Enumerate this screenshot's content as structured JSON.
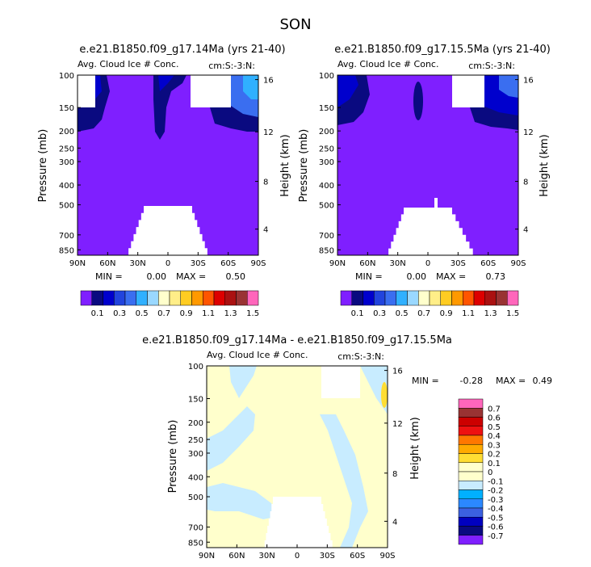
{
  "figure": {
    "title": "SON"
  },
  "chart_data": [
    {
      "type": "heatmap",
      "title": "e.e21.B1850.f09_g17.14Ma (yrs 21-40)",
      "subtitle_left": "Avg. Cloud Ice # Conc.",
      "subtitle_right": "cm:S:-3:N:",
      "ylabel": "Pressure (mb)",
      "ylabel_right": "Height (km)",
      "x_ticks": [
        "90N",
        "60N",
        "30N",
        "0",
        "30S",
        "60S",
        "90S"
      ],
      "y_ticks": [
        "100",
        "150",
        "200",
        "250",
        "300",
        "400",
        "500",
        "700",
        "850"
      ],
      "y_ticks_right": [
        "16",
        "12",
        "8",
        "4"
      ],
      "stats": {
        "min_label": "MIN =",
        "min": "0.00",
        "max_label": "MAX =",
        "max": "0.50"
      },
      "colorbar": {
        "orientation": "horizontal",
        "labels": [
          "0.1",
          "0.3",
          "0.5",
          "0.7",
          "0.9",
          "1.1",
          "1.3",
          "1.5"
        ],
        "colors": [
          "#7f1fff",
          "#0a0a80",
          "#0000cd",
          "#2244dd",
          "#3a6ef0",
          "#30b0ff",
          "#9ad8ff",
          "#ffffcc",
          "#ffee88",
          "#ffcc22",
          "#ff9900",
          "#ff5500",
          "#dd0000",
          "#aa1111",
          "#993333",
          "#ff66bb"
        ]
      }
    },
    {
      "type": "heatmap",
      "title": "e.e21.B1850.f09_g17.15.5Ma (yrs 21-40)",
      "subtitle_left": "Avg. Cloud Ice # Conc.",
      "subtitle_right": "cm:S:-3:N:",
      "ylabel": "Pressure (mb)",
      "ylabel_right": "Height (km)",
      "x_ticks": [
        "90N",
        "60N",
        "30N",
        "0",
        "30S",
        "60S",
        "90S"
      ],
      "y_ticks": [
        "100",
        "150",
        "200",
        "250",
        "300",
        "400",
        "500",
        "700",
        "850"
      ],
      "y_ticks_right": [
        "16",
        "12",
        "8",
        "4"
      ],
      "stats": {
        "min_label": "MIN =",
        "min": "0.00",
        "max_label": "MAX =",
        "max": "0.73"
      },
      "colorbar": {
        "orientation": "horizontal",
        "labels": [
          "0.1",
          "0.3",
          "0.5",
          "0.7",
          "0.9",
          "1.1",
          "1.3",
          "1.5"
        ],
        "colors": [
          "#7f1fff",
          "#0a0a80",
          "#0000cd",
          "#2244dd",
          "#3a6ef0",
          "#30b0ff",
          "#9ad8ff",
          "#ffffcc",
          "#ffee88",
          "#ffcc22",
          "#ff9900",
          "#ff5500",
          "#dd0000",
          "#aa1111",
          "#993333",
          "#ff66bb"
        ]
      }
    },
    {
      "type": "heatmap",
      "title": "e.e21.B1850.f09_g17.14Ma - e.e21.B1850.f09_g17.15.5Ma",
      "subtitle_left": "Avg. Cloud Ice # Conc.",
      "subtitle_right": "cm:S:-3:N:",
      "ylabel": "Pressure (mb)",
      "ylabel_right": "Height (km)",
      "x_ticks": [
        "90N",
        "60N",
        "30N",
        "0",
        "30S",
        "60S",
        "90S"
      ],
      "y_ticks": [
        "100",
        "150",
        "200",
        "250",
        "300",
        "400",
        "500",
        "700",
        "850"
      ],
      "y_ticks_right": [
        "16",
        "12",
        "8",
        "4"
      ],
      "stats": {
        "min_label": "MIN =",
        "min": "-0.28",
        "max_label": "MAX =",
        "max": "0.49"
      },
      "colorbar": {
        "orientation": "vertical",
        "labels": [
          "0.7",
          "0.6",
          "0.5",
          "0.4",
          "0.3",
          "0.2",
          "0.1",
          "0",
          "-0.1",
          "-0.2",
          "-0.3",
          "-0.4",
          "-0.5",
          "-0.6",
          "-0.7"
        ],
        "colors": [
          "#ff66bb",
          "#993333",
          "#cc0000",
          "#ee1111",
          "#ff7700",
          "#ffaa00",
          "#ffdd33",
          "#ffffcc",
          "#ffffcc",
          "#c8ecff",
          "#00b0ff",
          "#2b88ff",
          "#3b60e0",
          "#0000c0",
          "#0a0a80",
          "#7f1fff"
        ]
      }
    }
  ]
}
